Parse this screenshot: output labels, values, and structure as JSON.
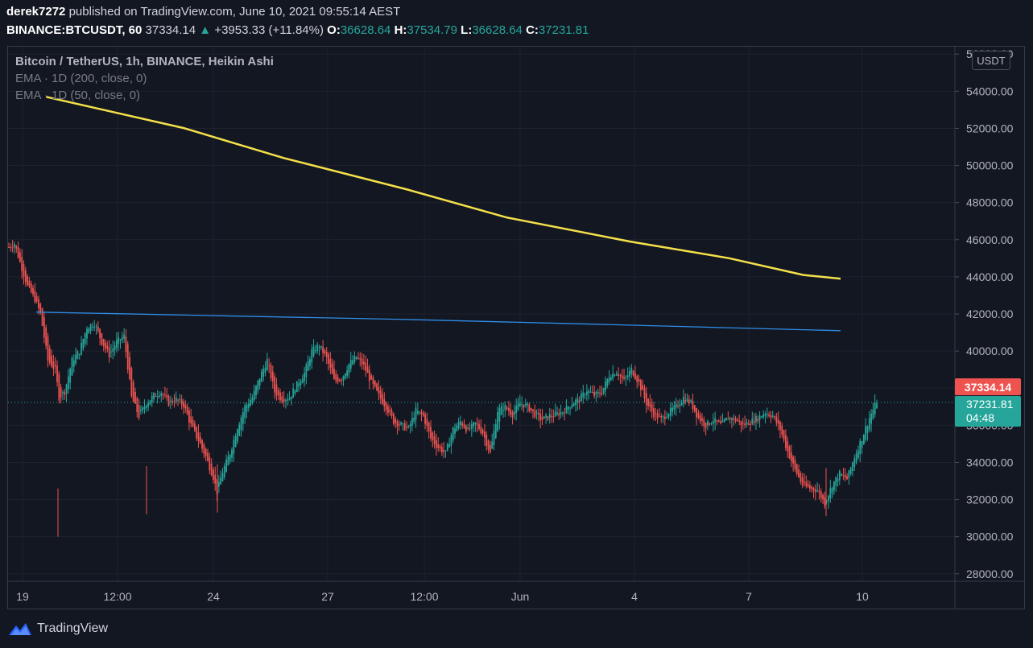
{
  "header": {
    "author": "derek7272",
    "published_text": "published on TradingView.com, June 10, 2021 09:55:14 AEST",
    "symbol": "BINANCE:BTCUSDT, 60",
    "last": "37334.14",
    "change_arrow": "▲",
    "change": "+3953.33 (+11.84%)",
    "o_label": "O:",
    "o_value": "36628.64",
    "h_label": "H:",
    "h_value": "37534.79",
    "l_label": "L:",
    "l_value": "36628.64",
    "c_label": "C:",
    "c_value": "37231.81"
  },
  "legend": {
    "line1": "Bitcoin / TetherUS, 1h, BINANCE, Heikin Ashi",
    "line2": "EMA · 1D (200, close, 0)",
    "line3": "EMA · 1D (50, close, 0)"
  },
  "price_axis": {
    "currency": "USDT",
    "last_price_tag": "37334.14",
    "close_tag": "37231.81",
    "countdown": "04:48"
  },
  "footer": {
    "brand": "TradingView"
  },
  "colors": {
    "background": "#131722",
    "up": "#26a69a",
    "down": "#ef5350",
    "ema200": "#f5e04a",
    "ema50": "#2f8ee8",
    "grid": "#1e222d"
  },
  "chart_data": {
    "type": "candlestick",
    "title": "Bitcoin / TetherUS, 1h, BINANCE, Heikin Ashi",
    "x_tick_labels": [
      "19",
      "12:00",
      "24",
      "27",
      "12:00",
      "Jun",
      "4",
      "7",
      "10"
    ],
    "y_tick_labels": [
      "28000.00",
      "30000.00",
      "32000.00",
      "34000.00",
      "36000.00",
      "38000.00",
      "40000.00",
      "42000.00",
      "44000.00",
      "46000.00",
      "48000.00",
      "50000.00",
      "52000.00",
      "54000.00",
      "56000.00"
    ],
    "ylim": [
      27600,
      56400
    ],
    "grid": true,
    "price_keypoints": [
      [
        0,
        45600
      ],
      [
        3,
        45800
      ],
      [
        6,
        44800
      ],
      [
        10,
        43500
      ],
      [
        14,
        42800
      ],
      [
        17,
        42000
      ],
      [
        21,
        39500
      ],
      [
        25,
        39000
      ],
      [
        27,
        37500
      ],
      [
        30,
        37800
      ],
      [
        34,
        39500
      ],
      [
        38,
        40000
      ],
      [
        42,
        41300
      ],
      [
        46,
        41500
      ],
      [
        50,
        40500
      ],
      [
        54,
        39800
      ],
      [
        58,
        40500
      ],
      [
        62,
        40800
      ],
      [
        66,
        37500
      ],
      [
        70,
        36500
      ],
      [
        74,
        37200
      ],
      [
        78,
        37600
      ],
      [
        82,
        37800
      ],
      [
        86,
        37200
      ],
      [
        90,
        37400
      ],
      [
        94,
        37100
      ],
      [
        98,
        36000
      ],
      [
        102,
        35200
      ],
      [
        106,
        34300
      ],
      [
        110,
        33200
      ],
      [
        112,
        32400
      ],
      [
        115,
        33500
      ],
      [
        119,
        34500
      ],
      [
        123,
        35900
      ],
      [
        127,
        37000
      ],
      [
        131,
        37500
      ],
      [
        135,
        38600
      ],
      [
        139,
        39500
      ],
      [
        143,
        37800
      ],
      [
        147,
        37400
      ],
      [
        151,
        37500
      ],
      [
        155,
        38200
      ],
      [
        159,
        38800
      ],
      [
        163,
        40000
      ],
      [
        167,
        40300
      ],
      [
        171,
        39600
      ],
      [
        175,
        38400
      ],
      [
        179,
        38500
      ],
      [
        183,
        39300
      ],
      [
        187,
        39700
      ],
      [
        191,
        39200
      ],
      [
        195,
        38300
      ],
      [
        199,
        37600
      ],
      [
        203,
        37000
      ],
      [
        207,
        36200
      ],
      [
        211,
        36000
      ],
      [
        215,
        35800
      ],
      [
        219,
        36800
      ],
      [
        223,
        36500
      ],
      [
        227,
        35300
      ],
      [
        231,
        34800
      ],
      [
        235,
        34500
      ],
      [
        239,
        35800
      ],
      [
        243,
        36200
      ],
      [
        247,
        35700
      ],
      [
        251,
        36100
      ],
      [
        255,
        35600
      ],
      [
        259,
        34500
      ],
      [
        263,
        36800
      ],
      [
        267,
        37000
      ],
      [
        271,
        36600
      ],
      [
        275,
        37200
      ],
      [
        279,
        37000
      ],
      [
        283,
        36600
      ],
      [
        287,
        36300
      ],
      [
        291,
        36500
      ],
      [
        295,
        36600
      ],
      [
        299,
        36800
      ],
      [
        303,
        37200
      ],
      [
        307,
        37400
      ],
      [
        311,
        37900
      ],
      [
        315,
        37600
      ],
      [
        319,
        37800
      ],
      [
        323,
        38700
      ],
      [
        327,
        38900
      ],
      [
        331,
        38400
      ],
      [
        335,
        39000
      ],
      [
        339,
        38300
      ],
      [
        343,
        37200
      ],
      [
        347,
        36600
      ],
      [
        351,
        36300
      ],
      [
        355,
        36700
      ],
      [
        359,
        37000
      ],
      [
        363,
        37500
      ],
      [
        367,
        37200
      ],
      [
        371,
        36400
      ],
      [
        375,
        36000
      ],
      [
        379,
        36300
      ],
      [
        383,
        36000
      ],
      [
        387,
        36400
      ],
      [
        391,
        36300
      ],
      [
        395,
        36000
      ],
      [
        399,
        36200
      ],
      [
        403,
        36400
      ],
      [
        407,
        36700
      ],
      [
        411,
        36500
      ],
      [
        415,
        35800
      ],
      [
        419,
        34600
      ],
      [
        423,
        33600
      ],
      [
        427,
        32800
      ],
      [
        431,
        32600
      ],
      [
        435,
        32500
      ],
      [
        439,
        31800
      ],
      [
        443,
        32800
      ],
      [
        447,
        33400
      ],
      [
        451,
        33100
      ],
      [
        455,
        34300
      ],
      [
        459,
        35300
      ],
      [
        463,
        36400
      ],
      [
        467,
        37300
      ]
    ],
    "candle_count": 468,
    "ema_200": {
      "name": "EMA · 1D (200, close, 0)",
      "keypoints": [
        [
          8,
          53700
        ],
        [
          120,
          52000
        ],
        [
          200,
          50400
        ],
        [
          300,
          48700
        ],
        [
          380,
          47200
        ],
        [
          480,
          45900
        ],
        [
          560,
          45000
        ],
        [
          620,
          44100
        ],
        [
          650,
          43900
        ]
      ]
    },
    "ema_50": {
      "name": "EMA · 1D (50, close, 0)",
      "keypoints": [
        [
          0,
          42100
        ],
        [
          150,
          41900
        ],
        [
          300,
          41700
        ],
        [
          450,
          41450
        ],
        [
          650,
          41100
        ]
      ]
    },
    "last_price": 37334.14,
    "close": 37231.81
  }
}
